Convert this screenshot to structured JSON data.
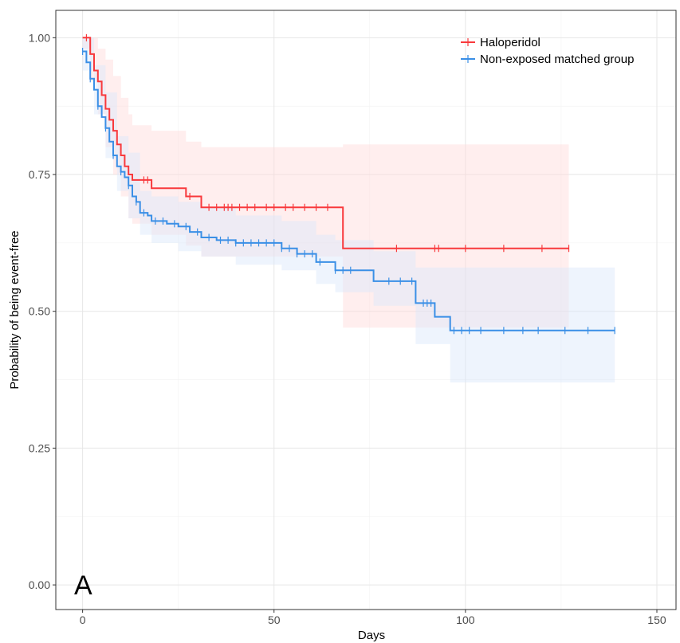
{
  "chart_data": {
    "type": "line",
    "subtype": "kaplan-meier",
    "panel_label": "A",
    "xlabel": "Days",
    "ylabel": "Probability of being event-free",
    "xlim": [
      -7,
      155
    ],
    "ylim": [
      -0.045,
      1.05
    ],
    "x_ticks": [
      0,
      50,
      100,
      150
    ],
    "x_tick_labels": [
      "0",
      "50",
      "100",
      "150"
    ],
    "y_ticks": [
      0,
      0.25,
      0.5,
      0.75,
      1.0
    ],
    "y_tick_labels": [
      "0.00",
      "0.25",
      "0.50",
      "0.75",
      "1.00"
    ],
    "grid": true,
    "legend_position": "top-right",
    "series": [
      {
        "name": "Haloperidol",
        "color": "#f8393c",
        "band_color": "#ffd9d9",
        "steps": [
          [
            0,
            1.0
          ],
          [
            2,
            0.97
          ],
          [
            3,
            0.94
          ],
          [
            4,
            0.92
          ],
          [
            5,
            0.895
          ],
          [
            6,
            0.87
          ],
          [
            7,
            0.85
          ],
          [
            8,
            0.83
          ],
          [
            9,
            0.805
          ],
          [
            10,
            0.785
          ],
          [
            11,
            0.765
          ],
          [
            12,
            0.75
          ],
          [
            13,
            0.74
          ],
          [
            18,
            0.725
          ],
          [
            27,
            0.71
          ],
          [
            31,
            0.69
          ],
          [
            68,
            0.615
          ],
          [
            127,
            0.615
          ]
        ],
        "censored": [
          1,
          16,
          17,
          28,
          33,
          35,
          37,
          38,
          39,
          41,
          43,
          45,
          48,
          50,
          53,
          55,
          58,
          61,
          64,
          82,
          92,
          93,
          100,
          110,
          120,
          127
        ],
        "ci_steps": [
          [
            0,
            0.98,
            1.0
          ],
          [
            2,
            0.92,
            1.0
          ],
          [
            4,
            0.86,
            0.98
          ],
          [
            6,
            0.8,
            0.96
          ],
          [
            8,
            0.75,
            0.93
          ],
          [
            10,
            0.71,
            0.89
          ],
          [
            12,
            0.67,
            0.86
          ],
          [
            13,
            0.66,
            0.84
          ],
          [
            18,
            0.64,
            0.83
          ],
          [
            27,
            0.62,
            0.81
          ],
          [
            31,
            0.6,
            0.8
          ],
          [
            68,
            0.47,
            0.805
          ],
          [
            127,
            0.47,
            0.805
          ]
        ]
      },
      {
        "name": "Non-exposed matched group",
        "color": "#3a8fe6",
        "band_color": "#d9e7fa",
        "steps": [
          [
            0,
            0.975
          ],
          [
            1,
            0.955
          ],
          [
            2,
            0.925
          ],
          [
            3,
            0.905
          ],
          [
            4,
            0.875
          ],
          [
            5,
            0.855
          ],
          [
            6,
            0.835
          ],
          [
            7,
            0.81
          ],
          [
            8,
            0.785
          ],
          [
            9,
            0.765
          ],
          [
            10,
            0.755
          ],
          [
            11,
            0.745
          ],
          [
            12,
            0.73
          ],
          [
            13,
            0.71
          ],
          [
            14,
            0.7
          ],
          [
            15,
            0.68
          ],
          [
            17,
            0.675
          ],
          [
            18,
            0.665
          ],
          [
            22,
            0.66
          ],
          [
            25,
            0.655
          ],
          [
            28,
            0.645
          ],
          [
            31,
            0.635
          ],
          [
            35,
            0.63
          ],
          [
            40,
            0.625
          ],
          [
            52,
            0.615
          ],
          [
            56,
            0.605
          ],
          [
            61,
            0.59
          ],
          [
            66,
            0.575
          ],
          [
            76,
            0.555
          ],
          [
            87,
            0.515
          ],
          [
            92,
            0.49
          ],
          [
            96,
            0.465
          ],
          [
            139,
            0.465
          ]
        ],
        "censored": [
          0,
          2,
          4,
          6,
          8,
          10,
          12,
          14,
          16,
          19,
          21,
          24,
          27,
          30,
          33,
          36,
          38,
          40,
          42,
          44,
          46,
          48,
          50,
          52,
          54,
          56,
          58,
          60,
          62,
          66,
          68,
          70,
          80,
          83,
          86,
          89,
          90,
          91,
          97,
          99,
          101,
          104,
          110,
          115,
          119,
          126,
          132,
          139
        ],
        "ci_steps": [
          [
            0,
            0.94,
            1.0
          ],
          [
            3,
            0.86,
            0.95
          ],
          [
            6,
            0.78,
            0.9
          ],
          [
            9,
            0.72,
            0.82
          ],
          [
            12,
            0.67,
            0.79
          ],
          [
            15,
            0.64,
            0.72
          ],
          [
            18,
            0.625,
            0.71
          ],
          [
            25,
            0.61,
            0.7
          ],
          [
            31,
            0.6,
            0.69
          ],
          [
            40,
            0.585,
            0.675
          ],
          [
            52,
            0.575,
            0.665
          ],
          [
            61,
            0.55,
            0.64
          ],
          [
            66,
            0.535,
            0.63
          ],
          [
            76,
            0.51,
            0.61
          ],
          [
            87,
            0.44,
            0.58
          ],
          [
            96,
            0.37,
            0.58
          ],
          [
            139,
            0.37,
            0.58
          ]
        ]
      }
    ]
  }
}
